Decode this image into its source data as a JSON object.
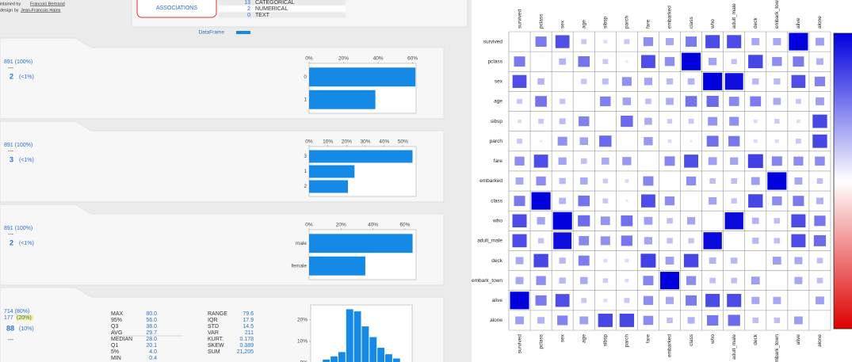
{
  "header": {
    "maintained": "maintained by",
    "maintainer": "Francois Bertrand",
    "design": "design by",
    "designer": "Jean-Francois Hains",
    "button": "ASSOCIATIONS",
    "types": [
      {
        "count": "13",
        "label": "CATEGORICAL"
      },
      {
        "count": "2",
        "label": "NUMERICAL"
      },
      {
        "count": "0",
        "label": "TEXT"
      }
    ],
    "legend": "DataFrame"
  },
  "features": [
    {
      "count": "891 (100%)",
      "sep": "---",
      "distinct": "2",
      "distinct_pct": "(<1%)",
      "chart": {
        "type": "bar",
        "categories": [
          "0",
          "1"
        ],
        "values": [
          61.6,
          38.4
        ],
        "xlim": [
          0,
          62
        ],
        "color": "#1589e6",
        "xticks": [
          {
            "value": 0,
            "label": "0%"
          },
          {
            "value": 20,
            "label": "20%"
          },
          {
            "value": 40,
            "label": "40%"
          },
          {
            "value": 60,
            "label": "60%"
          }
        ]
      }
    },
    {
      "count": "891 (100%)",
      "sep": "---",
      "distinct": "3",
      "distinct_pct": "(<1%)",
      "chart": {
        "type": "bar",
        "categories": [
          "3",
          "1",
          "2"
        ],
        "values": [
          55.1,
          24.2,
          20.7
        ],
        "xlim": [
          0,
          57
        ],
        "color": "#1589e6",
        "xticks": [
          {
            "value": 0,
            "label": "0%"
          },
          {
            "value": 10,
            "label": "10%"
          },
          {
            "value": 20,
            "label": "20%"
          },
          {
            "value": 30,
            "label": "30%"
          },
          {
            "value": 40,
            "label": "40%"
          },
          {
            "value": 50,
            "label": "50%"
          }
        ]
      }
    },
    {
      "count": "891 (100%)",
      "sep": "---",
      "distinct": "2",
      "distinct_pct": "(<1%)",
      "chart": {
        "type": "bar",
        "categories": [
          "male",
          "female"
        ],
        "values": [
          64.8,
          35.2
        ],
        "xlim": [
          0,
          67
        ],
        "color": "#1589e6",
        "xticks": [
          {
            "value": 0,
            "label": "0%"
          },
          {
            "value": 20,
            "label": "20%"
          },
          {
            "value": 40,
            "label": "40%"
          },
          {
            "value": 60,
            "label": "60%"
          }
        ]
      }
    },
    {
      "count": "714 (80%)",
      "missing": "177",
      "missing_pct": "(20%)",
      "distinct": "88",
      "distinct_pct": "(10%)",
      "sep": "---",
      "summary": [
        [
          "MAX",
          "80.0"
        ],
        [
          "95%",
          "56.0"
        ],
        [
          "Q3",
          "38.0"
        ],
        [
          "AVG",
          "29.7"
        ],
        [
          "MEDIAN",
          "28.0"
        ],
        [
          "Q1",
          "20.1"
        ],
        [
          "5%",
          "4.0"
        ],
        [
          "MIN",
          "0.4"
        ]
      ],
      "summary2": [
        [
          "RANGE",
          "79.6"
        ],
        [
          "IQR",
          "17.9"
        ],
        [
          "STD",
          "14.5"
        ],
        [
          "VAR",
          "211"
        ],
        [
          "KURT.",
          "0.178"
        ],
        [
          "SKEW",
          "0.389"
        ],
        [
          "SUM",
          "21,205"
        ]
      ],
      "chart": {
        "type": "histogram",
        "bins": [
          0,
          8,
          16,
          24,
          32,
          40,
          48,
          56,
          64,
          72,
          80
        ],
        "values": [
          1.5,
          3,
          5,
          25,
          24,
          17,
          12,
          7,
          4,
          2
        ],
        "xlim": [
          -12,
          92
        ],
        "ylim": [
          0,
          27
        ],
        "color": "#1589e6",
        "yticks": [
          {
            "value": 0,
            "label": "0%"
          },
          {
            "value": 10,
            "label": "10%"
          },
          {
            "value": 20,
            "label": "20%"
          }
        ]
      }
    }
  ],
  "associations": {
    "type": "heatmap",
    "colors": [
      "#0000dd",
      "#ffffff",
      "#dd0000"
    ],
    "labels": [
      "survived",
      "pclass",
      "sex",
      "age",
      "sibsp",
      "parch",
      "fare",
      "embarked",
      "class",
      "who",
      "adult_male",
      "deck",
      "embark_town",
      "alive",
      "alone"
    ],
    "values": [
      [
        null,
        0.34,
        0.54,
        0.08,
        0.04,
        0.08,
        0.26,
        0.17,
        0.34,
        0.56,
        0.56,
        0.17,
        0.17,
        1.0,
        0.2
      ],
      [
        0.34,
        null,
        0.13,
        0.37,
        0.08,
        0.02,
        0.55,
        0.26,
        1.0,
        0.18,
        0.09,
        0.58,
        0.26,
        0.34,
        0.14
      ],
      [
        0.54,
        0.13,
        null,
        0.09,
        0.11,
        0.25,
        0.18,
        0.12,
        0.13,
        1.0,
        0.91,
        0.12,
        0.12,
        0.54,
        0.3
      ],
      [
        0.08,
        0.37,
        0.09,
        null,
        0.31,
        0.19,
        0.1,
        0.16,
        0.37,
        0.4,
        0.28,
        0.33,
        0.16,
        0.08,
        0.2
      ],
      [
        0.04,
        0.08,
        0.11,
        0.31,
        null,
        0.41,
        0.16,
        0.07,
        0.08,
        0.24,
        0.25,
        0.04,
        0.07,
        0.04,
        0.58
      ],
      [
        0.08,
        0.02,
        0.25,
        0.19,
        0.41,
        null,
        0.22,
        0.04,
        0.02,
        0.38,
        0.35,
        0.04,
        0.04,
        0.08,
        0.58
      ],
      [
        0.26,
        0.55,
        0.18,
        0.1,
        0.16,
        0.22,
        null,
        0.29,
        0.55,
        0.2,
        0.18,
        0.62,
        0.29,
        0.26,
        0.27
      ],
      [
        0.17,
        0.26,
        0.12,
        0.16,
        0.07,
        0.04,
        0.29,
        null,
        0.26,
        0.1,
        0.1,
        0.2,
        1.0,
        0.17,
        0.1
      ],
      [
        0.34,
        1.0,
        0.13,
        0.37,
        0.08,
        0.02,
        0.55,
        0.26,
        null,
        0.18,
        0.09,
        0.58,
        0.26,
        0.34,
        0.14
      ],
      [
        0.56,
        0.18,
        1.0,
        0.4,
        0.24,
        0.38,
        0.2,
        0.1,
        0.18,
        null,
        0.94,
        0.13,
        0.1,
        0.56,
        0.35
      ],
      [
        0.56,
        0.09,
        0.91,
        0.28,
        0.25,
        0.35,
        0.18,
        0.1,
        0.09,
        0.94,
        null,
        0.12,
        0.1,
        0.56,
        0.4
      ],
      [
        0.17,
        0.58,
        0.12,
        0.33,
        0.04,
        0.04,
        0.62,
        0.2,
        0.58,
        0.13,
        0.12,
        null,
        0.2,
        0.17,
        0.1
      ],
      [
        0.17,
        0.26,
        0.12,
        0.16,
        0.07,
        0.04,
        0.29,
        1.0,
        0.26,
        0.1,
        0.1,
        0.2,
        null,
        0.17,
        0.1
      ],
      [
        1.0,
        0.34,
        0.54,
        0.08,
        0.04,
        0.08,
        0.26,
        0.17,
        0.34,
        0.56,
        0.56,
        0.17,
        0.17,
        null,
        0.2
      ],
      [
        0.2,
        0.14,
        0.3,
        0.2,
        0.58,
        0.58,
        0.27,
        0.1,
        0.14,
        0.35,
        0.4,
        0.1,
        0.1,
        0.2,
        null
      ]
    ]
  }
}
